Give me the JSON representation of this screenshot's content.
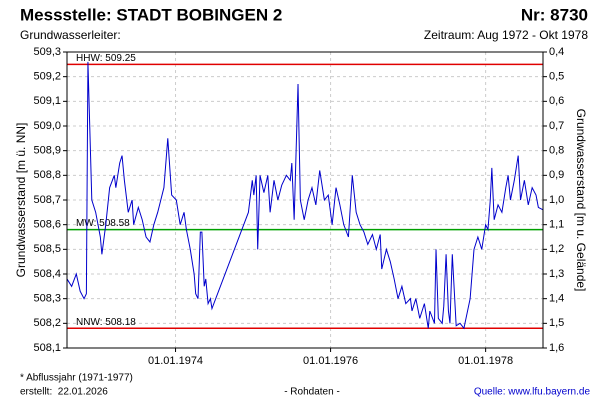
{
  "chart_data": {
    "type": "line",
    "title": "Messstelle: STADT BOBINGEN 2",
    "number": "Nr: 8730",
    "subtitle_left": "Grundwasserleiter:",
    "subtitle_right": "Zeitraum: Aug 1972 - Okt 1978",
    "ylabel": "Grundwasserstand [m ü. NN]",
    "y2label": "Grundwasserstand [m u. Gelände]",
    "footnote": "* Abflussjahr (1971-1977)",
    "created": "erstellt:  22.01.2026",
    "data_note": "- Rohdaten -",
    "source": "Quelle: www.lfu.bayern.de",
    "xlim": [
      1972.6,
      1978.74
    ],
    "xticks": [
      {
        "value": 1974,
        "label": "01.01.1974"
      },
      {
        "value": 1976,
        "label": "01.01.1976"
      },
      {
        "value": 1978,
        "label": "01.01.1978"
      }
    ],
    "ylim": [
      508.1,
      509.3
    ],
    "yticks": [
      {
        "value": 508.1,
        "label": "508,1"
      },
      {
        "value": 508.2,
        "label": "508,2"
      },
      {
        "value": 508.3,
        "label": "508,3"
      },
      {
        "value": 508.4,
        "label": "508,4"
      },
      {
        "value": 508.5,
        "label": "508,5"
      },
      {
        "value": 508.6,
        "label": "508,6"
      },
      {
        "value": 508.7,
        "label": "508,7"
      },
      {
        "value": 508.8,
        "label": "508,8"
      },
      {
        "value": 508.9,
        "label": "508,9"
      },
      {
        "value": 509.0,
        "label": "509,0"
      },
      {
        "value": 509.1,
        "label": "509,1"
      },
      {
        "value": 509.2,
        "label": "509,2"
      },
      {
        "value": 509.3,
        "label": "509,3"
      }
    ],
    "y2lim": [
      1.6,
      0.4
    ],
    "y2ticks": [
      {
        "value": 1.6,
        "label": "1,6"
      },
      {
        "value": 1.5,
        "label": "1,5"
      },
      {
        "value": 1.4,
        "label": "1,4"
      },
      {
        "value": 1.3,
        "label": "1,3"
      },
      {
        "value": 1.2,
        "label": "1,2"
      },
      {
        "value": 1.1,
        "label": "1,1"
      },
      {
        "value": 1.0,
        "label": "1,0"
      },
      {
        "value": 0.9,
        "label": "0,9"
      },
      {
        "value": 0.8,
        "label": "0,8"
      },
      {
        "value": 0.7,
        "label": "0,7"
      },
      {
        "value": 0.6,
        "label": "0,6"
      },
      {
        "value": 0.5,
        "label": "0,5"
      },
      {
        "value": 0.4,
        "label": "0,4"
      }
    ],
    "grid": true,
    "reference_lines": [
      {
        "label": "HHW: 509.25",
        "value": 509.25,
        "color": "#e00000"
      },
      {
        "label": "MW: 508.58",
        "value": 508.58,
        "color": "#00a000"
      },
      {
        "label": "NNW: 508.18",
        "value": 508.18,
        "color": "#e00000"
      }
    ],
    "series": [
      {
        "color": "#0000cc",
        "x": [
          1972.6,
          1972.66,
          1972.72,
          1972.77,
          1972.82,
          1972.85,
          1972.87,
          1972.92,
          1972.97,
          1973.03,
          1973.05,
          1973.1,
          1973.15,
          1973.21,
          1973.23,
          1973.28,
          1973.31,
          1973.34,
          1973.39,
          1973.44,
          1973.46,
          1973.52,
          1973.57,
          1973.62,
          1973.67,
          1973.72,
          1973.77,
          1973.85,
          1973.9,
          1973.95,
          1974.01,
          1974.06,
          1974.11,
          1974.14,
          1974.19,
          1974.24,
          1974.26,
          1974.29,
          1974.32,
          1974.34,
          1974.37,
          1974.39,
          1974.42,
          1974.45,
          1974.47,
          1974.94,
          1974.99,
          1975.01,
          1975.04,
          1975.06,
          1975.09,
          1975.14,
          1975.19,
          1975.22,
          1975.27,
          1975.32,
          1975.37,
          1975.43,
          1975.48,
          1975.5,
          1975.53,
          1975.58,
          1975.61,
          1975.66,
          1975.71,
          1975.76,
          1975.81,
          1975.86,
          1975.92,
          1975.97,
          1976.02,
          1976.07,
          1976.12,
          1976.17,
          1976.23,
          1976.28,
          1976.33,
          1976.38,
          1976.43,
          1976.48,
          1976.54,
          1976.59,
          1976.64,
          1976.66,
          1976.72,
          1976.77,
          1976.82,
          1976.87,
          1976.92,
          1976.97,
          1977.03,
          1977.05,
          1977.1,
          1977.15,
          1977.21,
          1977.26,
          1977.28,
          1977.34,
          1977.36,
          1977.39,
          1977.44,
          1977.46,
          1977.49,
          1977.52,
          1977.54,
          1977.57,
          1977.62,
          1977.67,
          1977.72,
          1977.8,
          1977.85,
          1977.9,
          1977.95,
          1978.0,
          1978.03,
          1978.06,
          1978.08,
          1978.11,
          1978.16,
          1978.21,
          1978.26,
          1978.29,
          1978.32,
          1978.37,
          1978.42,
          1978.45,
          1978.5,
          1978.55,
          1978.6,
          1978.65,
          1978.68,
          1978.74
        ],
        "values": [
          508.38,
          508.35,
          508.4,
          508.33,
          508.3,
          508.32,
          509.26,
          508.7,
          508.65,
          508.55,
          508.48,
          508.6,
          508.75,
          508.8,
          508.75,
          508.85,
          508.88,
          508.78,
          508.65,
          508.7,
          508.6,
          508.67,
          508.62,
          508.55,
          508.53,
          508.6,
          508.65,
          508.75,
          508.95,
          508.72,
          508.7,
          508.6,
          508.65,
          508.58,
          508.5,
          508.4,
          508.32,
          508.3,
          508.57,
          508.57,
          508.35,
          508.38,
          508.28,
          508.3,
          508.26,
          508.65,
          508.78,
          508.72,
          508.8,
          508.5,
          508.8,
          508.73,
          508.8,
          508.65,
          508.78,
          508.7,
          508.76,
          508.8,
          508.78,
          508.85,
          508.62,
          509.17,
          508.7,
          508.62,
          508.7,
          508.75,
          508.68,
          508.82,
          508.7,
          508.72,
          508.6,
          508.75,
          508.68,
          508.6,
          508.55,
          508.8,
          508.65,
          508.6,
          508.57,
          508.52,
          508.56,
          508.5,
          508.56,
          508.42,
          508.5,
          508.45,
          508.38,
          508.3,
          508.35,
          508.28,
          508.3,
          508.25,
          508.3,
          508.22,
          508.28,
          508.18,
          508.25,
          508.2,
          508.5,
          508.22,
          508.2,
          508.27,
          508.48,
          508.25,
          508.2,
          508.48,
          508.19,
          508.2,
          508.18,
          508.3,
          508.5,
          508.55,
          508.5,
          508.6,
          508.58,
          508.7,
          508.83,
          508.62,
          508.68,
          508.65,
          508.75,
          508.8,
          508.7,
          508.78,
          508.88,
          508.7,
          508.78,
          508.68,
          508.75,
          508.72,
          508.67,
          508.66
        ]
      }
    ]
  }
}
